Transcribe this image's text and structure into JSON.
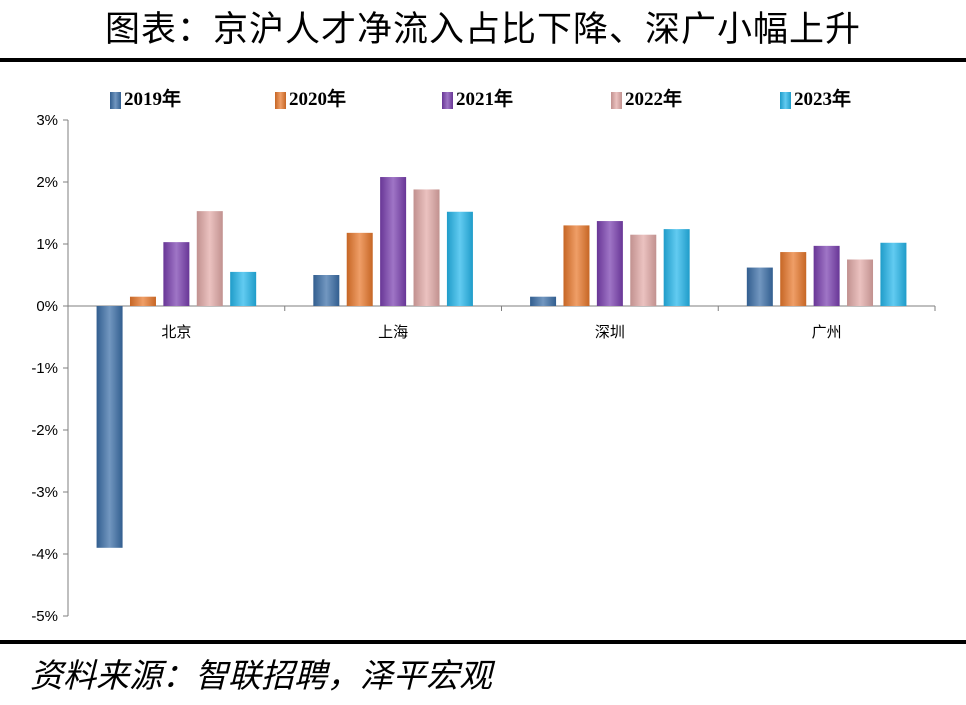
{
  "header": {
    "title": "图表：京沪人才净流入占比下降、深广小幅上升"
  },
  "footer": {
    "source": "资料来源：智联招聘，泽平宏观"
  },
  "colors": {
    "2019年": "#3b6fa8",
    "2020年": "#e9782c",
    "2021年": "#7a3fb0",
    "2022年": "#e3aaa8",
    "2023年": "#25b7ec"
  },
  "chart_data": {
    "type": "bar",
    "categories": [
      "北京",
      "上海",
      "深圳",
      "广州"
    ],
    "series": [
      {
        "name": "2019年",
        "values": [
          -3.9,
          0.5,
          0.15,
          0.62
        ]
      },
      {
        "name": "2020年",
        "values": [
          0.15,
          1.18,
          1.3,
          0.87
        ]
      },
      {
        "name": "2021年",
        "values": [
          1.03,
          2.08,
          1.37,
          0.97
        ]
      },
      {
        "name": "2022年",
        "values": [
          1.53,
          1.88,
          1.15,
          0.75
        ]
      },
      {
        "name": "2023年",
        "values": [
          0.55,
          1.52,
          1.24,
          1.02
        ]
      }
    ],
    "ylim": [
      -5,
      3
    ],
    "yticks": [
      3,
      2,
      1,
      0,
      -1,
      -2,
      -3,
      -4,
      -5
    ],
    "ytick_labels": [
      "3%",
      "2%",
      "1%",
      "0%",
      "-1%",
      "-2%",
      "-3%",
      "-4%",
      "-5%"
    ],
    "unit": "%",
    "legend_position": "top",
    "grid": false
  }
}
